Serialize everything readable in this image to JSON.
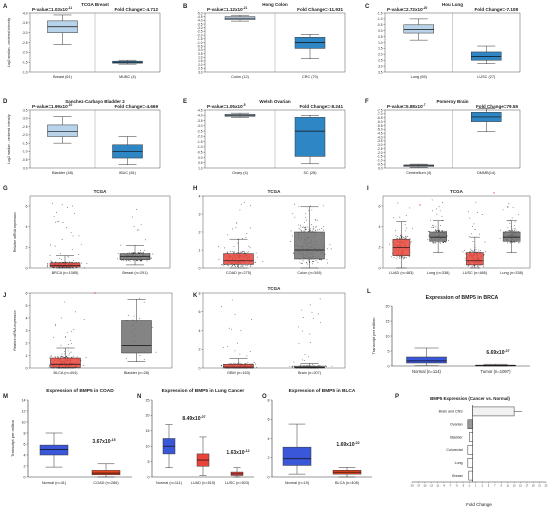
{
  "figure_panels": {
    "A": {
      "letter": "A",
      "title": "TCGA Breast",
      "pvalue": "P-value=1.03x10",
      "pexp": "-11",
      "fc": "Fold Change=-4.712",
      "ylabel": "Log2 median - centered intensity",
      "yticks": [
        "-1.0",
        "-1.5",
        "-2.0",
        "-2.5",
        "-3.0",
        "-3.5",
        "-4.0"
      ],
      "cats": [
        "Breast (61)",
        "MUBC (4)"
      ]
    },
    "B": {
      "letter": "B",
      "title": "Hong Colon",
      "pvalue": "P-value=1.12x10",
      "pexp": "-21",
      "fc": "Fold Change=-11.931",
      "yticks": [
        "3.0",
        "2.5",
        "2.0",
        "1.5",
        "1.0",
        "0.5",
        "0.0",
        "-0.5",
        "-1.0",
        "-1.5",
        "-2.0",
        "-2.5",
        "-3.0",
        "-3.5",
        "-4.0",
        "-4.5",
        "-5.0"
      ],
      "cats": [
        "Colon (12)",
        "CRC (70)"
      ]
    },
    "C": {
      "letter": "C",
      "title": "Hou Lung",
      "pvalue": "P-value=2.72x10",
      "pexp": "-20",
      "fc": "Fold Change=-7.108",
      "yticks": [
        "3.5",
        "3.0",
        "2.5",
        "2.0",
        "1.5",
        "1.0",
        "0.5",
        "0.0",
        "-0.5",
        "-1.0",
        "-1.5"
      ],
      "cats": [
        "Lung (65)",
        "LUSC (27)"
      ]
    },
    "D": {
      "letter": "D",
      "title": "Sanchez-Carbayo Bladder 2",
      "pvalue": "P-value=1.99x10",
      "pexp": "-10",
      "fc": "Fold Change=-4.669",
      "ylabel": "Log2 median - centered intensity",
      "yticks": [
        "0.0",
        "-0.5",
        "-1.0",
        "-1.5",
        "-2.0",
        "-2.5",
        "-3.0",
        "-3.5"
      ],
      "cats": [
        "Bladder (48)",
        "IBUC (81)"
      ]
    },
    "E": {
      "letter": "E",
      "title": "Welsh Ovarian",
      "pvalue": "P-value=1.05x10",
      "pexp": "-5",
      "fc": "Fold Change=-8.241",
      "yticks": [
        "1.0",
        "0.5",
        "0.0",
        "-0.5",
        "-1.0",
        "-1.5",
        "-2.0",
        "-2.5",
        "-3.0",
        "-3.5",
        "-4.0",
        "-4.5"
      ],
      "cats": [
        "Ovary (4)",
        "SC (28)"
      ]
    },
    "F": {
      "letter": "F",
      "title": "Pomeroy Brain",
      "pvalue": "P-value=5.88x10",
      "pexp": "-7",
      "fc": "Fold Change=79.55",
      "yticks": [
        "0.0",
        "-0.5",
        "-1.0",
        "-1.5",
        "-2.0",
        "-2.5",
        "-3.0",
        "-3.5",
        "-4.0",
        "-4.5",
        "-5.0",
        "-5.5",
        "-6.0",
        "-6.5",
        "-7.0",
        "-7.5"
      ],
      "cats": [
        "Cerebellum (4)",
        "DMMB(14)"
      ]
    },
    "G": {
      "letter": "G",
      "title": "TCGA",
      "ylabel": "Relative mRNA expression",
      "yticks": [
        "0",
        "2",
        "4",
        "6"
      ],
      "cats": [
        "BRCA (n=1085)",
        "Breast (n=291)"
      ]
    },
    "H": {
      "letter": "H",
      "title": "TCGA",
      "yticks": [
        "0",
        "1",
        "2",
        "3",
        "4"
      ],
      "cats": [
        "COAD (n=275)",
        "Colon (n=349)"
      ]
    },
    "I": {
      "letter": "I",
      "title": "TCGA",
      "yticks": [
        "0",
        "2",
        "4",
        "6"
      ],
      "cats": [
        "LUAD (n=483)",
        "Lung (n=338)",
        "LUSC (n=486)",
        "Lung (n=338)"
      ]
    },
    "J": {
      "letter": "J",
      "ylabel": "Relative mRNA expression",
      "yticks": [
        "0",
        "1",
        "2",
        "3",
        "4",
        "5",
        "6"
      ],
      "cats": [
        "BLCA (n=404)",
        "Bladder (n=28)"
      ]
    },
    "K": {
      "letter": "K",
      "title": "TCGA",
      "yticks": [
        "0",
        "2",
        "4",
        "6",
        "8"
      ],
      "cats": [
        "GBM (n=163)",
        "Brain (n=207)"
      ]
    },
    "L": {
      "letter": "L",
      "title": "Expression of BMP5 in BRCA",
      "ylabel": "Transcript per million",
      "yticks": [
        "0",
        "5",
        "10",
        "15",
        "20"
      ],
      "cats": [
        "Normal (n=114)",
        "Tumor (n=1097)"
      ],
      "pv": "6.69x10",
      "pvexp": "-07"
    },
    "M": {
      "letter": "M",
      "title": "Expression of BMP5 in COAD",
      "ylabel": "Transcript per million",
      "yticks": [
        "0",
        "2",
        "4",
        "6",
        "8",
        "10",
        "12",
        "14"
      ],
      "cats": [
        "Normal (n=41)",
        "COAD (n=286)"
      ],
      "pv": "3.67x10",
      "pvexp": "-15"
    },
    "N": {
      "letter": "N",
      "title": "Expression of BMP5 in Lung Cancer",
      "yticks": [
        "0",
        "5",
        "10",
        "15",
        "20",
        "25"
      ],
      "cats": [
        "Normal (n=111)",
        "LUAD (n=515)",
        "LUSC (n=503)"
      ],
      "pv1": "8.49x10",
      "pv1exp": "-07",
      "pv2": "1.63x10",
      "pv2exp": "-12"
    },
    "O": {
      "letter": "O",
      "title": "Expression of BMP5 in BLCA",
      "yticks": [
        "0",
        "2",
        "4",
        "6",
        "8"
      ],
      "cats": [
        "Normal (n=19)",
        "BLCA (n=408)"
      ],
      "pv": "1.69x10",
      "pvexp": "-02"
    },
    "P": {
      "letter": "P",
      "title": "BMP5 Expression (Cancer vs. Normal)",
      "xlabel": "Fold Change",
      "xticks": [
        "-19",
        "-17",
        "-15",
        "-13",
        "-11",
        "-9",
        "-7",
        "-5",
        "-3",
        "-1",
        "1",
        "3",
        "5",
        "7",
        "9",
        "11",
        "13",
        "15",
        "17",
        "19",
        "21",
        "23"
      ],
      "cats": [
        "Brain and CNS",
        "Ovarian",
        "Bladder",
        "Colorectal",
        "Lung",
        "Breast"
      ]
    }
  },
  "chart_data": [
    {
      "type": "box",
      "panel": "A",
      "title": "TCGA Breast",
      "ylim": [
        -4.0,
        -1.0
      ],
      "series": [
        {
          "name": "Breast (61)",
          "q1": -2.0,
          "median": -1.7,
          "q3": -1.4,
          "min": -2.6,
          "max": -1.1
        },
        {
          "name": "MUBC (4)",
          "q1": -3.55,
          "median": -3.5,
          "q3": -3.45,
          "min": -3.6,
          "max": -3.4
        }
      ]
    },
    {
      "type": "box",
      "panel": "B",
      "title": "Hong Colon",
      "ylim": [
        -5.0,
        3.0
      ],
      "series": [
        {
          "name": "Colon (12)",
          "q1": 2.1,
          "median": 2.3,
          "q3": 2.5,
          "min": 1.9,
          "max": 2.7
        },
        {
          "name": "CRC (70)",
          "q1": -1.8,
          "median": -1.0,
          "q3": -0.3,
          "min": -3.2,
          "max": 0.1
        }
      ]
    },
    {
      "type": "box",
      "panel": "C",
      "title": "Hou Lung",
      "ylim": [
        -1.5,
        3.5
      ],
      "series": [
        {
          "name": "Lung (65)",
          "q1": 1.8,
          "median": 2.1,
          "q3": 2.5,
          "min": 1.2,
          "max": 3.0
        },
        {
          "name": "LUSC (27)",
          "q1": -0.5,
          "median": -0.2,
          "q3": 0.2,
          "min": -0.8,
          "max": 0.7
        }
      ]
    },
    {
      "type": "box",
      "panel": "D",
      "title": "Sanchez-Carbayo Bladder 2",
      "ylim": [
        -3.5,
        0.0
      ],
      "series": [
        {
          "name": "Bladder (48)",
          "q1": -1.6,
          "median": -1.3,
          "q3": -0.9,
          "min": -2.0,
          "max": -0.4
        },
        {
          "name": "IBUC (81)",
          "q1": -2.9,
          "median": -2.5,
          "q3": -2.1,
          "min": -3.3,
          "max": -1.6
        }
      ]
    },
    {
      "type": "box",
      "panel": "E",
      "title": "Welsh Ovarian",
      "ylim": [
        -4.5,
        1.0
      ],
      "series": [
        {
          "name": "Ovary (4)",
          "q1": 0.4,
          "median": 0.5,
          "q3": 0.6,
          "min": 0.3,
          "max": 0.7
        },
        {
          "name": "SC (28)",
          "q1": -3.4,
          "median": -1.0,
          "q3": 0.3,
          "min": -4.1,
          "max": 0.5
        }
      ]
    },
    {
      "type": "box",
      "panel": "F",
      "title": "Pomeroy Brain",
      "ylim": [
        -7.5,
        0.0
      ],
      "series": [
        {
          "name": "Cerebellum (4)",
          "q1": -7.3,
          "median": -7.2,
          "q3": -7.1,
          "min": -7.4,
          "max": -7.0
        },
        {
          "name": "DMMB(14)",
          "q1": -1.5,
          "median": -0.9,
          "q3": -0.3,
          "min": -2.8,
          "max": 0.2
        }
      ]
    },
    {
      "type": "box",
      "panel": "G",
      "title": "TCGA",
      "ylim": [
        0,
        7
      ],
      "series": [
        {
          "name": "BRCA (n=1085)",
          "q1": 0.1,
          "median": 0.25,
          "q3": 0.5,
          "min": 0,
          "max": 1.2
        },
        {
          "name": "Breast (n=291)",
          "q1": 0.8,
          "median": 1.1,
          "q3": 1.4,
          "min": 0.3,
          "max": 2.2
        }
      ]
    },
    {
      "type": "box",
      "panel": "H",
      "title": "TCGA",
      "ylim": [
        0,
        4
      ],
      "series": [
        {
          "name": "COAD (n=275)",
          "q1": 0.2,
          "median": 0.4,
          "q3": 0.8,
          "min": 0,
          "max": 1.6
        },
        {
          "name": "Colon (n=349)",
          "q1": 0.5,
          "median": 1.0,
          "q3": 2.0,
          "min": 0,
          "max": 3.4
        }
      ]
    },
    {
      "type": "box",
      "panel": "I",
      "title": "TCGA",
      "ylim": [
        0,
        7
      ],
      "series": [
        {
          "name": "LUAD (n=483)",
          "q1": 1.2,
          "median": 2.0,
          "q3": 2.8,
          "min": 0,
          "max": 4.5
        },
        {
          "name": "Lung (n=338)",
          "q1": 2.6,
          "median": 3.0,
          "q3": 3.5,
          "min": 1.5,
          "max": 4.6
        },
        {
          "name": "LUSC (n=486)",
          "q1": 0.3,
          "median": 0.7,
          "q3": 1.5,
          "min": 0,
          "max": 3.0
        },
        {
          "name": "Lung (n=338)",
          "q1": 2.6,
          "median": 3.0,
          "q3": 3.5,
          "min": 1.5,
          "max": 4.6
        }
      ]
    },
    {
      "type": "box",
      "panel": "J",
      "ylim": [
        0,
        6
      ],
      "series": [
        {
          "name": "BLCA (n=404)",
          "q1": 0.05,
          "median": 0.3,
          "q3": 0.8,
          "min": 0,
          "max": 1.6
        },
        {
          "name": "Bladder (n=28)",
          "q1": 1.2,
          "median": 1.8,
          "q3": 3.8,
          "min": 0.5,
          "max": 5.5
        }
      ]
    },
    {
      "type": "box",
      "panel": "K",
      "title": "TCGA",
      "ylim": [
        0,
        8
      ],
      "series": [
        {
          "name": "GBM (n=163)",
          "q1": 0.0,
          "median": 0.1,
          "q3": 0.4,
          "min": 0,
          "max": 1.0
        },
        {
          "name": "Brain (n=207)",
          "q1": 0.0,
          "median": 0.05,
          "q3": 0.2,
          "min": 0,
          "max": 0.5
        }
      ]
    },
    {
      "type": "box",
      "panel": "L",
      "title": "Expression of BMP5 in BRCA",
      "ylabel": "Transcript per million",
      "ylim": [
        0,
        20
      ],
      "series": [
        {
          "name": "Normal (n=114)",
          "q1": 1.0,
          "median": 1.7,
          "q3": 3.0,
          "min": 0.1,
          "max": 6.0
        },
        {
          "name": "Tumor (n=1097)",
          "q1": 0.1,
          "median": 0.2,
          "q3": 0.3,
          "min": 0,
          "max": 0.6
        }
      ]
    },
    {
      "type": "box",
      "panel": "M",
      "title": "Expression of BMP5 in COAD",
      "ylabel": "Transcript per million",
      "ylim": [
        0,
        14
      ],
      "series": [
        {
          "name": "Normal (n=41)",
          "q1": 4.0,
          "median": 5.0,
          "q3": 5.8,
          "min": 1.8,
          "max": 8.0
        },
        {
          "name": "COAD (n=286)",
          "q1": 0.4,
          "median": 0.7,
          "q3": 1.2,
          "min": 0,
          "max": 2.4
        }
      ]
    },
    {
      "type": "box",
      "panel": "N",
      "title": "Expression of BMP5 in Lung Cancer",
      "ylim": [
        0,
        25
      ],
      "series": [
        {
          "name": "Normal (n=111)",
          "q1": 7.5,
          "median": 10.0,
          "q3": 12.5,
          "min": 3.0,
          "max": 17.0
        },
        {
          "name": "LUAD (n=515)",
          "q1": 3.5,
          "median": 5.5,
          "q3": 7.5,
          "min": 0.5,
          "max": 13.0
        },
        {
          "name": "LUSC (n=503)",
          "q1": 0.5,
          "median": 1.0,
          "q3": 1.6,
          "min": 0,
          "max": 3.0
        }
      ]
    },
    {
      "type": "box",
      "panel": "O",
      "title": "Expression of BMP5 in BLCA",
      "ylim": [
        0,
        8
      ],
      "series": [
        {
          "name": "Normal (n=19)",
          "q1": 1.2,
          "median": 1.9,
          "q3": 3.1,
          "min": 0.3,
          "max": 5.5
        },
        {
          "name": "BLCA (n=408)",
          "q1": 0.3,
          "median": 0.5,
          "q3": 0.7,
          "min": 0,
          "max": 1.0
        }
      ]
    },
    {
      "type": "bar",
      "panel": "P",
      "title": "BMP5 Expression (Cancer vs. Normal)",
      "xlabel": "Fold Change",
      "orientation": "horizontal",
      "categories": [
        "Brain and CNS",
        "Ovarian",
        "Bladder",
        "Colorectal",
        "Lung",
        "Breast"
      ],
      "values": [
        13,
        -1.5,
        -1.0,
        -1.5,
        -1.5,
        -1.2
      ],
      "xlim": [
        -19,
        23
      ]
    }
  ],
  "colors": {
    "light_blue": "#b9d4ea",
    "mid_blue": "#2f86c4",
    "dark_blue": "#1d6fa8",
    "red": "#e8443a",
    "grey": "#6e6e6e",
    "dark_grey": "#555555",
    "royal": "#3b57d9",
    "orange_red": "#e8441e"
  }
}
